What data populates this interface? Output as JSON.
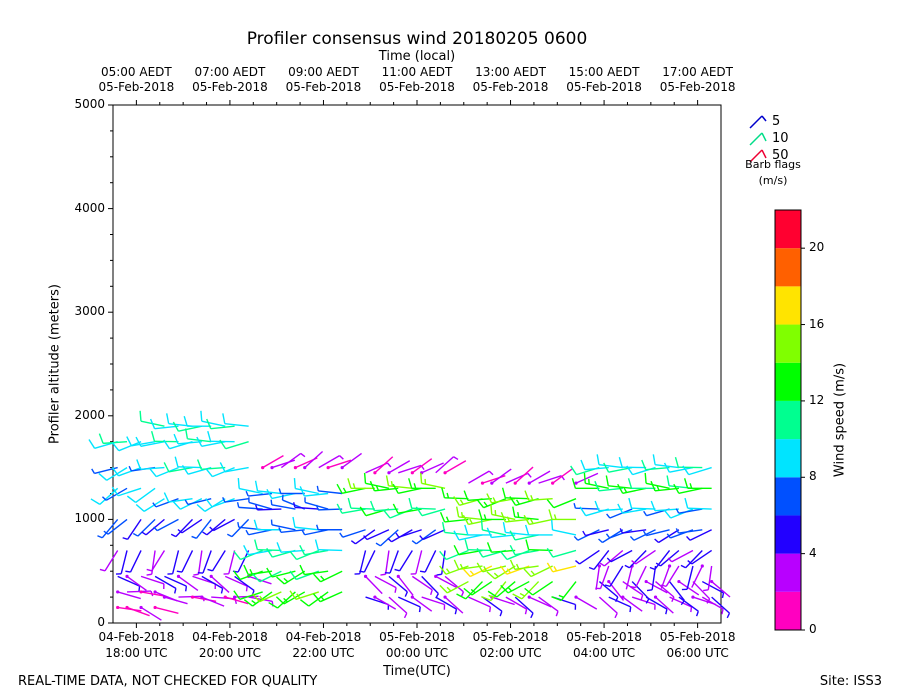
{
  "title": "Profiler consensus wind 20180205 0600",
  "footer": {
    "quality_note": "REAL-TIME DATA, NOT CHECKED FOR QUALITY",
    "site": "Site: ISS3"
  },
  "legend": {
    "items": [
      {
        "label": "5",
        "color": "#0000cc"
      },
      {
        "label": "10",
        "color": "#00dd88"
      },
      {
        "label": "50",
        "color": "#ee0033"
      }
    ],
    "note_line1": "Barb flags",
    "note_line2": "(m/s)",
    "placement": "top-right outside"
  },
  "chart_data": {
    "type": "wind-barb",
    "title": "Profiler consensus wind 20180205 0600",
    "xlabel": "Time(UTC)",
    "x2label": "Time (local)",
    "ylabel": "Profiler altitude (meters)",
    "ylim": [
      0,
      5000
    ],
    "yticks": [
      "0",
      "1000",
      "2000",
      "3000",
      "4000",
      "5000"
    ],
    "x_hours_utc_range": [
      "04-Feb-2018 17:30 UTC",
      "05-Feb-2018 06:30 UTC"
    ],
    "xticks_bottom": [
      {
        "line1": "04-Feb-2018",
        "line2": "18:00 UTC"
      },
      {
        "line1": "04-Feb-2018",
        "line2": "20:00 UTC"
      },
      {
        "line1": "04-Feb-2018",
        "line2": "22:00 UTC"
      },
      {
        "line1": "05-Feb-2018",
        "line2": "00:00 UTC"
      },
      {
        "line1": "05-Feb-2018",
        "line2": "02:00 UTC"
      },
      {
        "line1": "05-Feb-2018",
        "line2": "04:00 UTC"
      },
      {
        "line1": "05-Feb-2018",
        "line2": "06:00 UTC"
      }
    ],
    "xticks_top": [
      {
        "line1": "05:00 AEDT",
        "line2": "05-Feb-2018"
      },
      {
        "line1": "07:00 AEDT",
        "line2": "05-Feb-2018"
      },
      {
        "line1": "09:00 AEDT",
        "line2": "05-Feb-2018"
      },
      {
        "line1": "11:00 AEDT",
        "line2": "05-Feb-2018"
      },
      {
        "line1": "13:00 AEDT",
        "line2": "05-Feb-2018"
      },
      {
        "line1": "15:00 AEDT",
        "line2": "05-Feb-2018"
      },
      {
        "line1": "17:00 AEDT",
        "line2": "05-Feb-2018"
      }
    ],
    "colorbar": {
      "label": "Wind speed (m/s)",
      "bins": [
        0,
        2,
        4,
        6,
        8,
        10,
        12,
        14,
        16,
        18,
        20,
        22
      ],
      "colors": [
        "#ff00c0",
        "#b800ff",
        "#2200ff",
        "#0050ff",
        "#00e4ff",
        "#00ff90",
        "#00ff00",
        "#80ff00",
        "#ffe400",
        "#ff6000",
        "#ff0030"
      ],
      "ticks": [
        "0",
        "4",
        "8",
        "12",
        "16",
        "20"
      ]
    },
    "columns_hours": [
      17.6,
      17.8,
      18.1,
      18.4,
      18.6,
      18.9,
      19.2,
      19.4,
      19.6,
      19.9,
      20.1,
      20.4,
      20.7,
      20.9,
      21.1,
      21.4,
      21.6,
      21.9,
      22.1,
      22.4,
      22.9,
      23.1,
      23.4,
      23.6,
      23.9,
      0.1,
      0.4,
      0.6,
      1.1,
      1.4,
      1.6,
      1.9,
      2.1,
      2.4,
      2.6,
      2.9,
      3.4,
      3.9,
      4.1,
      4.4,
      4.6,
      4.9,
      5.1,
      5.4,
      5.6,
      5.9,
      6.1,
      6.3
    ],
    "profiles": [
      {
        "from_hour": 17.6,
        "to_hour": 18.4,
        "levels_m": [
          150,
          300,
          450,
          700,
          1000,
          1300,
          1500,
          1750
        ],
        "speeds_ms": [
          1,
          2,
          3,
          4,
          6,
          8,
          8,
          9
        ],
        "dir_deg": [
          110,
          100,
          120,
          200,
          220,
          240,
          250,
          260
        ]
      },
      {
        "from_hour": 18.4,
        "to_hour": 20.4,
        "levels_m": [
          250,
          450,
          700,
          1000,
          1200,
          1500,
          1750,
          1900
        ],
        "speeds_ms": [
          2,
          3,
          4,
          5,
          8,
          9,
          9,
          9
        ],
        "dir_deg": [
          100,
          120,
          200,
          230,
          250,
          260,
          265,
          270
        ]
      },
      {
        "from_hour": 20.4,
        "to_hour": 22.4,
        "levels_m": [
          300,
          500,
          700,
          900,
          1100,
          1250,
          1500
        ],
        "speeds_ms": [
          13,
          12,
          10,
          7,
          6,
          8,
          2
        ],
        "dir_deg": [
          240,
          250,
          260,
          270,
          280,
          270,
          60
        ]
      },
      {
        "from_hour": 22.4,
        "to_hour": 0.6,
        "levels_m": [
          250,
          450,
          700,
          900,
          1100,
          1300,
          1450
        ],
        "speeds_ms": [
          3,
          3,
          4,
          5,
          11,
          13,
          2
        ],
        "dir_deg": [
          120,
          130,
          200,
          240,
          260,
          270,
          60
        ]
      },
      {
        "from_hour": 0.6,
        "to_hour": 3.4,
        "levels_m": [
          250,
          400,
          550,
          700,
          850,
          1000,
          1200,
          1350
        ],
        "speeds_ms": [
          3,
          13,
          15,
          11,
          9,
          14,
          13,
          2
        ],
        "dir_deg": [
          120,
          230,
          250,
          260,
          270,
          270,
          260,
          60
        ]
      },
      {
        "from_hour": 3.4,
        "to_hour": 6.3,
        "levels_m": [
          250,
          400,
          550,
          700,
          900,
          1100,
          1300,
          1500
        ],
        "speeds_ms": [
          3,
          3,
          3,
          4,
          6,
          8,
          12,
          9
        ],
        "dir_deg": [
          120,
          130,
          200,
          230,
          250,
          260,
          270,
          265
        ]
      }
    ],
    "grid": false
  }
}
